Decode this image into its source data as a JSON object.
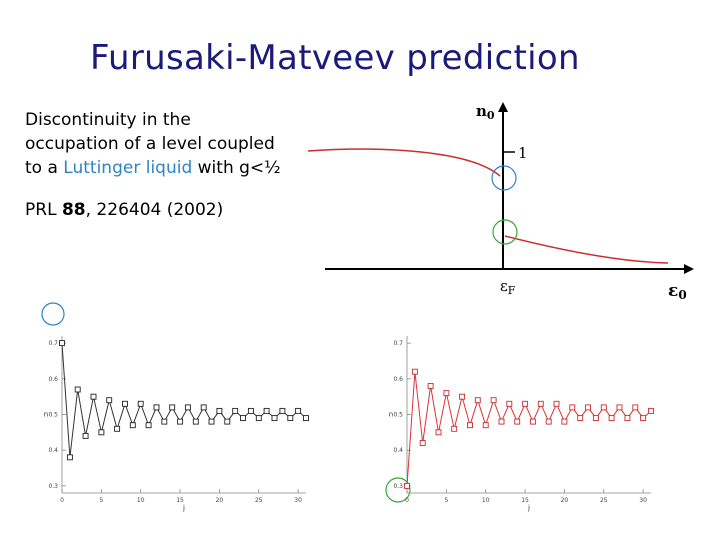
{
  "title": "Furusaki-Matveev prediction",
  "description": {
    "line1": "Discontinuity in the",
    "line2": "occupation of a level coupled",
    "line3_pre": "to a ",
    "line3_highlight": "Luttinger liquid",
    "line3_post": " with g<½"
  },
  "reference": {
    "pre": "PRL ",
    "volume": "88",
    "post": ", 226404 (2002)"
  },
  "diagram": {
    "y_axis_label": "n",
    "y_axis_sub": "0",
    "tick_label": "1",
    "x_mid_label": "ε",
    "x_mid_sub": "F",
    "x_axis_label": "ε",
    "x_axis_sub": "0"
  },
  "colors": {
    "title": "#1a1a7a",
    "highlight": "#2f83c6",
    "curve": "#cc2b2b",
    "circle_blue": "#2f7fd0",
    "circle_green": "#3aa43a"
  },
  "chart_data": [
    {
      "type": "line",
      "xlabel": "j",
      "ylabel": "n",
      "xlim": [
        0,
        31
      ],
      "ylim": [
        0.28,
        0.72
      ],
      "x_ticks": [
        "0",
        "5",
        "10",
        "15",
        "20",
        "25",
        "30"
      ],
      "y_ticks": [
        "0.3",
        "0.4",
        "0.5",
        "0.6",
        "0.7"
      ],
      "series": [
        {
          "x": [
            0,
            1,
            2,
            3,
            4,
            5,
            6,
            7,
            8,
            9,
            10,
            11,
            12,
            13,
            14,
            15,
            16,
            17,
            18,
            19,
            20,
            21,
            22,
            23,
            24,
            25,
            26,
            27,
            28,
            29,
            30,
            31
          ],
          "values": [
            0.7,
            0.38,
            0.57,
            0.44,
            0.55,
            0.45,
            0.54,
            0.46,
            0.53,
            0.47,
            0.53,
            0.47,
            0.52,
            0.48,
            0.52,
            0.48,
            0.52,
            0.48,
            0.52,
            0.48,
            0.51,
            0.48,
            0.51,
            0.49,
            0.51,
            0.49,
            0.51,
            0.49,
            0.51,
            0.49,
            0.51,
            0.49
          ]
        }
      ]
    },
    {
      "type": "line",
      "xlabel": "j",
      "ylabel": "n",
      "xlim": [
        0,
        31
      ],
      "ylim": [
        0.28,
        0.72
      ],
      "x_ticks": [
        "0",
        "5",
        "10",
        "15",
        "20",
        "25",
        "30"
      ],
      "y_ticks": [
        "0.3",
        "0.4",
        "0.5",
        "0.6",
        "0.7"
      ],
      "series": [
        {
          "x": [
            0,
            1,
            2,
            3,
            4,
            5,
            6,
            7,
            8,
            9,
            10,
            11,
            12,
            13,
            14,
            15,
            16,
            17,
            18,
            19,
            20,
            21,
            22,
            23,
            24,
            25,
            26,
            27,
            28,
            29,
            30,
            31
          ],
          "values": [
            0.3,
            0.62,
            0.42,
            0.58,
            0.45,
            0.56,
            0.46,
            0.55,
            0.47,
            0.54,
            0.47,
            0.54,
            0.48,
            0.53,
            0.48,
            0.53,
            0.48,
            0.53,
            0.48,
            0.53,
            0.48,
            0.52,
            0.49,
            0.52,
            0.49,
            0.52,
            0.49,
            0.52,
            0.49,
            0.52,
            0.49,
            0.51
          ]
        }
      ]
    }
  ]
}
